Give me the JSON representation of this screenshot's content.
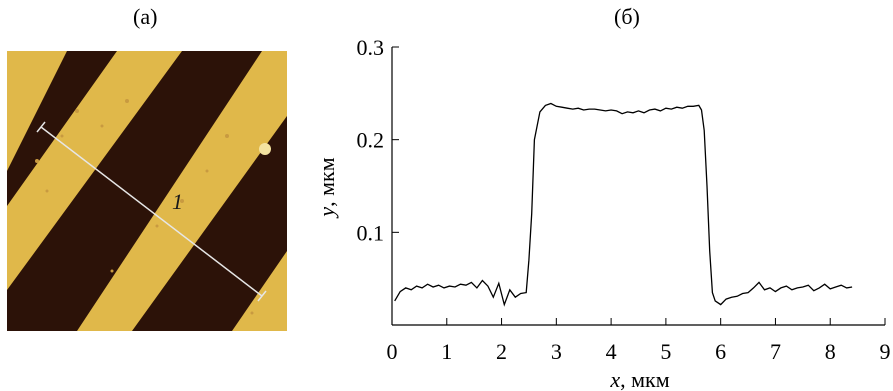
{
  "panels": {
    "a_label": "(а)",
    "b_label": "(б)"
  },
  "afm_image": {
    "line_label": "1",
    "colors": {
      "bright": "#e0b84a",
      "dark": "#2c1208",
      "line": "#e6e6e6"
    }
  },
  "chart_data": {
    "type": "line",
    "xlabel_var": "x",
    "xlabel_unit": ", мкм",
    "ylabel_var": "y",
    "ylabel_unit": ", мкм",
    "xlim": [
      0,
      9
    ],
    "ylim": [
      0,
      0.3
    ],
    "xticks": [
      "0",
      "1",
      "2",
      "3",
      "4",
      "5",
      "6",
      "7",
      "8",
      "9"
    ],
    "yticks": [
      "0.1",
      "0.2",
      "0.3"
    ],
    "ytick_values": [
      0.1,
      0.2,
      0.3
    ],
    "grid": false,
    "series": [
      {
        "color": "#000000",
        "x": [
          0.05,
          0.15,
          0.25,
          0.35,
          0.45,
          0.55,
          0.65,
          0.75,
          0.85,
          0.95,
          1.05,
          1.15,
          1.25,
          1.35,
          1.45,
          1.55,
          1.65,
          1.75,
          1.85,
          1.95,
          2.05,
          2.15,
          2.25,
          2.35,
          2.45,
          2.5,
          2.55,
          2.6,
          2.7,
          2.8,
          2.9,
          3.0,
          3.1,
          3.2,
          3.3,
          3.4,
          3.5,
          3.6,
          3.7,
          3.8,
          3.9,
          4.0,
          4.1,
          4.2,
          4.3,
          4.4,
          4.5,
          4.6,
          4.7,
          4.8,
          4.9,
          5.0,
          5.1,
          5.2,
          5.3,
          5.4,
          5.5,
          5.6,
          5.65,
          5.7,
          5.75,
          5.8,
          5.85,
          5.9,
          6.0,
          6.1,
          6.2,
          6.3,
          6.4,
          6.5,
          6.6,
          6.7,
          6.8,
          6.9,
          7.0,
          7.1,
          7.2,
          7.3,
          7.4,
          7.5,
          7.6,
          7.7,
          7.8,
          7.9,
          8.0,
          8.1,
          8.2,
          8.3,
          8.4
        ],
        "y": [
          0.026,
          0.036,
          0.04,
          0.038,
          0.042,
          0.04,
          0.044,
          0.041,
          0.043,
          0.04,
          0.042,
          0.041,
          0.044,
          0.043,
          0.046,
          0.04,
          0.048,
          0.042,
          0.03,
          0.045,
          0.022,
          0.038,
          0.03,
          0.034,
          0.035,
          0.07,
          0.12,
          0.2,
          0.23,
          0.237,
          0.239,
          0.236,
          0.235,
          0.234,
          0.233,
          0.234,
          0.232,
          0.233,
          0.233,
          0.232,
          0.231,
          0.232,
          0.231,
          0.228,
          0.23,
          0.229,
          0.231,
          0.229,
          0.232,
          0.233,
          0.231,
          0.234,
          0.233,
          0.235,
          0.234,
          0.236,
          0.236,
          0.237,
          0.232,
          0.21,
          0.15,
          0.08,
          0.035,
          0.026,
          0.022,
          0.028,
          0.03,
          0.031,
          0.034,
          0.035,
          0.04,
          0.046,
          0.038,
          0.04,
          0.036,
          0.04,
          0.042,
          0.038,
          0.04,
          0.041,
          0.043,
          0.037,
          0.04,
          0.044,
          0.039,
          0.041,
          0.043,
          0.04,
          0.041
        ]
      }
    ]
  }
}
